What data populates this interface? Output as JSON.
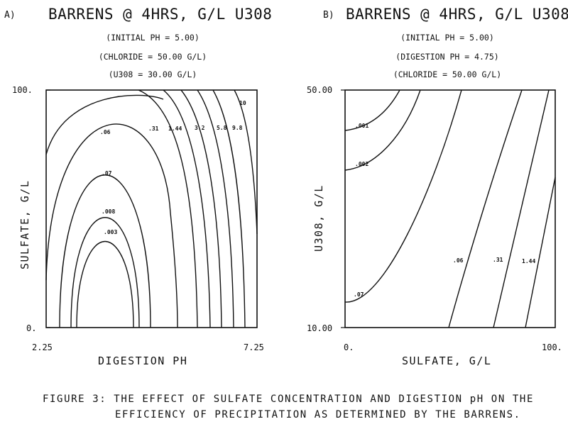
{
  "figure": {
    "caption_line1": "FIGURE 3:  THE EFFECT OF SULFATE CONCENTRATION AND DIGESTION pH ON THE",
    "caption_line2": "EFFICIENCY OF PRECIPITATION AS DETERMINED BY THE BARRENS."
  },
  "chart_data": [
    {
      "type": "contour",
      "panel_label": "A)",
      "title": "BARRENS @ 4HRS, G/L U308",
      "subtitles": [
        "(INITIAL PH =  5.00)",
        "(CHLORIDE = 50.00 G/L)",
        "(U308 = 30.00 G/L)"
      ],
      "xlabel": "DIGESTION PH",
      "ylabel": "SULFATE, G/L",
      "xlim": [
        2.25,
        7.25
      ],
      "ylim": [
        0,
        100
      ],
      "x_tick_labels": [
        "2.25",
        "7.25"
      ],
      "y_tick_labels": [
        "0.",
        "100."
      ],
      "contour_labels": [
        ".06",
        ".31",
        "1.44",
        "3.2",
        "5.8",
        "9.8",
        "10",
        ".07",
        ".008",
        ".003"
      ]
    },
    {
      "type": "contour",
      "panel_label": "B)",
      "title": "BARRENS @ 4HRS, G/L U308",
      "subtitles": [
        "(INITIAL PH =  5.00)",
        "(DIGESTION PH =  4.75)",
        "(CHLORIDE = 50.00 G/L)"
      ],
      "xlabel": "SULFATE, G/L",
      "ylabel": "U308, G/L",
      "xlim": [
        0,
        100
      ],
      "ylim": [
        10,
        50
      ],
      "x_tick_labels": [
        "0.",
        "100."
      ],
      "y_tick_labels": [
        "10.00",
        "50.00"
      ],
      "contour_labels": [
        ".001",
        ".002",
        ".07",
        ".06",
        ".31",
        "1.44"
      ]
    }
  ]
}
